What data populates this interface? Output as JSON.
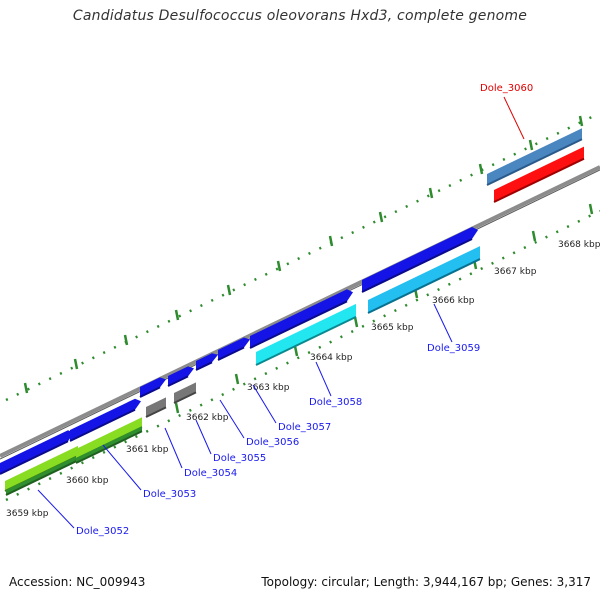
{
  "title": "Candidatus Desulfococcus oleovorans Hxd3, complete genome",
  "footer": {
    "accession": "Accession: NC_009943",
    "summary": "Topology: circular; Length: 3,944,167 bp; Genes: 3,317"
  },
  "colors": {
    "backbone": "#8c8c8c",
    "tick": "#2e8b2e",
    "link": "#1a1aee",
    "highlight": "#e00000"
  },
  "ruler": [
    {
      "label": "3659 kbp"
    },
    {
      "label": "3660 kbp"
    },
    {
      "label": "3661 kbp"
    },
    {
      "label": "3662 kbp"
    },
    {
      "label": "3663 kbp"
    },
    {
      "label": "3664 kbp"
    },
    {
      "label": "3665 kbp"
    },
    {
      "label": "3666 kbp"
    },
    {
      "label": "3667 kbp"
    },
    {
      "label": "3668 kbp"
    }
  ],
  "genes": [
    {
      "name": "Dole_3052",
      "color": "#1a1aee"
    },
    {
      "name": "Dole_3053",
      "color": "#1a1aee"
    },
    {
      "name": "Dole_3054",
      "color": "#1a1aee"
    },
    {
      "name": "Dole_3055",
      "color": "#1a1aee"
    },
    {
      "name": "Dole_3056",
      "color": "#1a1aee"
    },
    {
      "name": "Dole_3057",
      "color": "#1a1aee"
    },
    {
      "name": "Dole_3058",
      "color": "#1a1aee"
    },
    {
      "name": "Dole_3059",
      "color": "#1a1aee"
    },
    {
      "name": "Dole_3060",
      "color": "#e00000"
    }
  ]
}
